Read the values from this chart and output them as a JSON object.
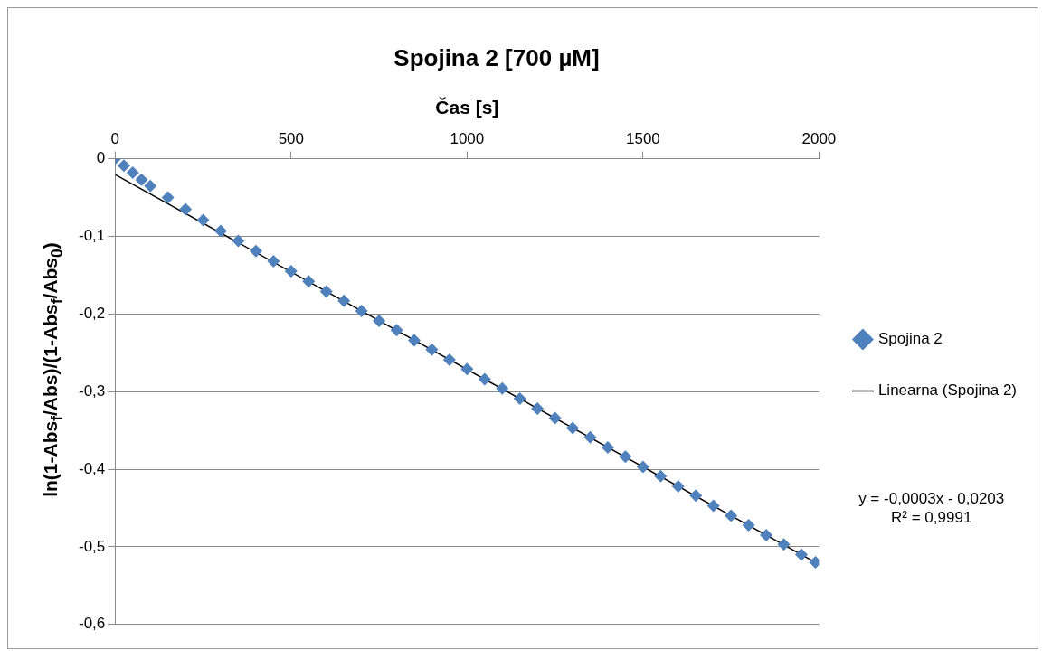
{
  "chart_data": {
    "type": "scatter",
    "title": "Spojina 2 [700 µM]",
    "xlabel": "Čas [s]",
    "ylabel": "ln(1-Abs$_{f}$/Abs)/(1-Abs$_{f}$/Abs$_{0}$)",
    "xlim": [
      0,
      2000
    ],
    "xticks": [
      0,
      500,
      1000,
      1500,
      2000
    ],
    "ylim": [
      -0.6,
      0
    ],
    "yticks": [
      {
        "value": 0,
        "label": "0"
      },
      {
        "value": -0.1,
        "label": "-0,1"
      },
      {
        "value": -0.2,
        "label": "-0,2"
      },
      {
        "value": -0.3,
        "label": "-0,3"
      },
      {
        "value": -0.4,
        "label": "-0,4"
      },
      {
        "value": -0.5,
        "label": "-0,5"
      },
      {
        "value": -0.6,
        "label": "-0,6"
      }
    ],
    "grid": "y",
    "legend": "right",
    "marker": "diamond",
    "annotations": [
      "y = -0,0003x - 0,0203",
      "R² = 0,9991"
    ],
    "series": [
      {
        "name": "Spojina 2",
        "color": "#4f81bd",
        "x": [
          0,
          25,
          50,
          75,
          100,
          150,
          200,
          250,
          300,
          350,
          400,
          450,
          500,
          550,
          600,
          650,
          700,
          750,
          800,
          850,
          900,
          950,
          1000,
          1050,
          1100,
          1150,
          1200,
          1250,
          1300,
          1350,
          1400,
          1450,
          1500,
          1550,
          1600,
          1650,
          1700,
          1750,
          1800,
          1850,
          1900,
          1950,
          1990
        ],
        "values": [
          0,
          -0.009,
          -0.018,
          -0.027,
          -0.035,
          -0.05,
          -0.065,
          -0.079,
          -0.093,
          -0.106,
          -0.119,
          -0.132,
          -0.145,
          -0.158,
          -0.171,
          -0.183,
          -0.196,
          -0.209,
          -0.221,
          -0.234,
          -0.246,
          -0.259,
          -0.271,
          -0.284,
          -0.296,
          -0.309,
          -0.322,
          -0.334,
          -0.347,
          -0.359,
          -0.372,
          -0.384,
          -0.397,
          -0.409,
          -0.422,
          -0.434,
          -0.447,
          -0.46,
          -0.472,
          -0.485,
          -0.497,
          -0.51,
          -0.52
        ]
      },
      {
        "name": "Linearna (Spojina 2)",
        "type": "line",
        "color": "#000000",
        "marker": "none",
        "line_style": "solid",
        "x": [
          0,
          1990
        ],
        "values": [
          -0.0203,
          -0.52
        ]
      }
    ]
  }
}
